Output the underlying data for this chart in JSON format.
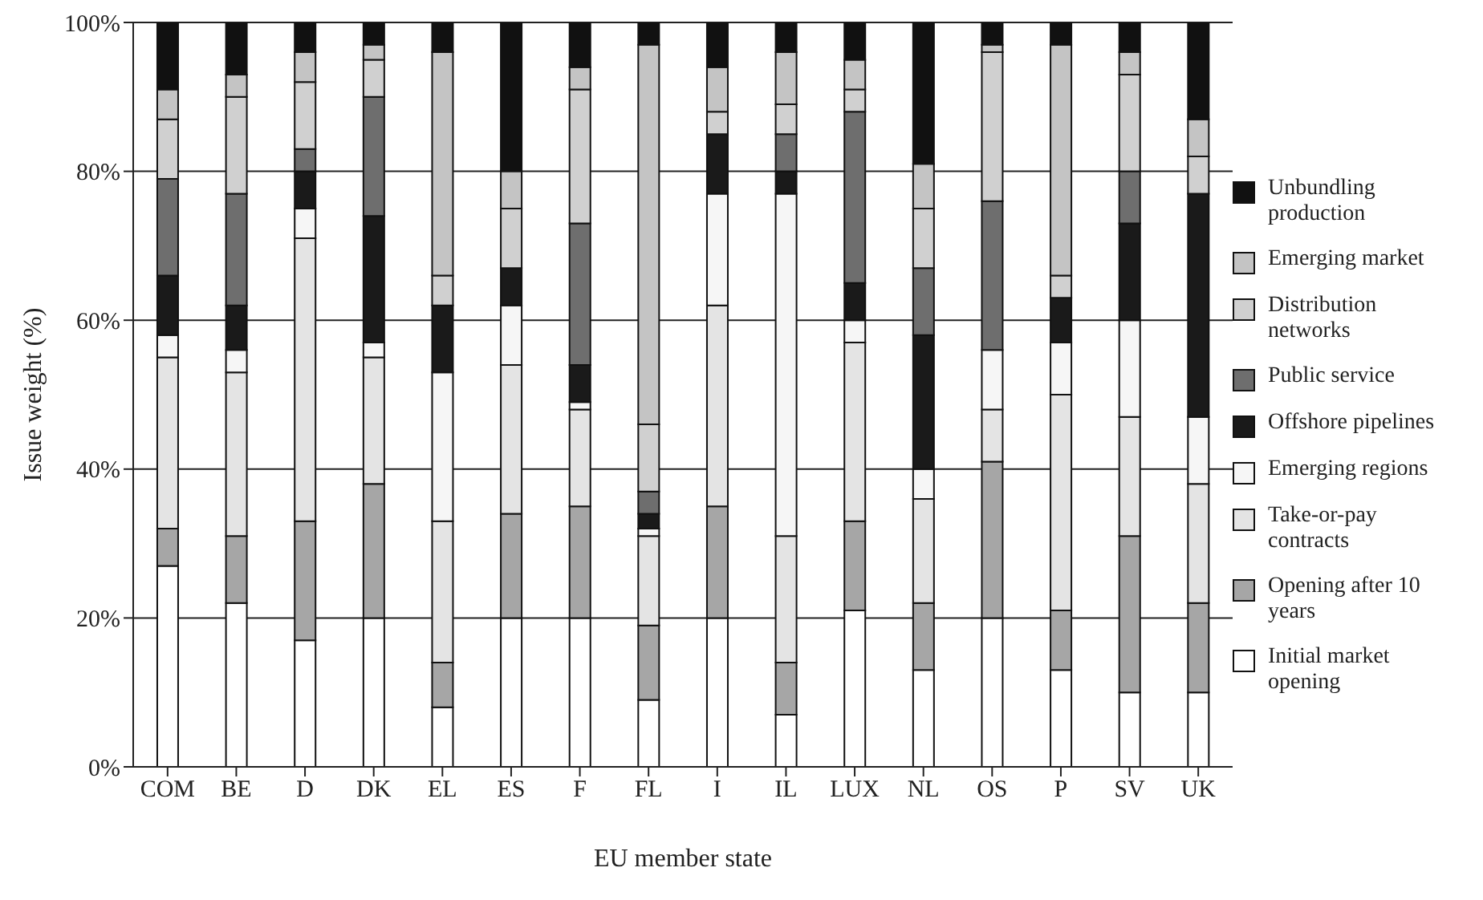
{
  "chart_data": {
    "type": "bar",
    "stacked": true,
    "xlabel": "EU member state",
    "ylabel": "Issue weight (%)",
    "categories": [
      "COM",
      "BE",
      "D",
      "DK",
      "EL",
      "ES",
      "F",
      "FL",
      "I",
      "IL",
      "LUX",
      "NL",
      "OS",
      "P",
      "SV",
      "UK"
    ],
    "series": [
      {
        "name": "Initial market opening",
        "color": "#ffffff",
        "values": [
          27,
          22,
          17,
          20,
          8,
          20,
          20,
          9,
          20,
          7,
          21,
          13,
          20,
          13,
          10,
          10
        ]
      },
      {
        "name": "Opening after 10 years",
        "color": "#a6a6a6",
        "values": [
          5,
          9,
          16,
          18,
          6,
          14,
          15,
          10,
          15,
          7,
          12,
          9,
          21,
          8,
          21,
          12
        ]
      },
      {
        "name": "Take-or-pay contracts",
        "color": "#e4e4e4",
        "values": [
          23,
          22,
          38,
          17,
          19,
          20,
          13,
          12,
          27,
          17,
          24,
          14,
          7,
          29,
          16,
          16
        ]
      },
      {
        "name": "Emerging regions",
        "color": "#f6f6f6",
        "values": [
          3,
          3,
          4,
          2,
          20,
          8,
          1,
          1,
          15,
          46,
          3,
          4,
          8,
          7,
          13,
          9
        ]
      },
      {
        "name": "Offshore pipelines",
        "color": "#1a1a1a",
        "values": [
          8,
          6,
          5,
          17,
          9,
          5,
          5,
          2,
          8,
          3,
          5,
          18,
          0,
          6,
          13,
          30
        ]
      },
      {
        "name": "Public service",
        "color": "#6e6e6e",
        "values": [
          13,
          15,
          3,
          16,
          0,
          0,
          19,
          3,
          0,
          5,
          23,
          9,
          20,
          0,
          7,
          0
        ]
      },
      {
        "name": "Distribution networks",
        "color": "#d0d0d0",
        "values": [
          8,
          13,
          9,
          5,
          4,
          8,
          18,
          9,
          3,
          4,
          3,
          8,
          20,
          3,
          13,
          5
        ]
      },
      {
        "name": "Emerging market",
        "color": "#c4c4c4",
        "values": [
          4,
          3,
          4,
          2,
          30,
          5,
          3,
          51,
          6,
          7,
          4,
          6,
          1,
          31,
          3,
          5
        ]
      },
      {
        "name": "Unbundling production",
        "color": "#111111",
        "values": [
          9,
          7,
          4,
          3,
          4,
          20,
          6,
          3,
          6,
          4,
          5,
          19,
          3,
          3,
          4,
          13
        ]
      }
    ],
    "ylim": [
      0,
      100
    ],
    "yticks": [
      {
        "value": 0,
        "label": "0%"
      },
      {
        "value": 20,
        "label": "20%"
      },
      {
        "value": 40,
        "label": "40%"
      },
      {
        "value": 60,
        "label": "60%"
      },
      {
        "value": 80,
        "label": "80%"
      },
      {
        "value": 100,
        "label": "100%"
      }
    ],
    "grid": "y",
    "legend": "right"
  }
}
